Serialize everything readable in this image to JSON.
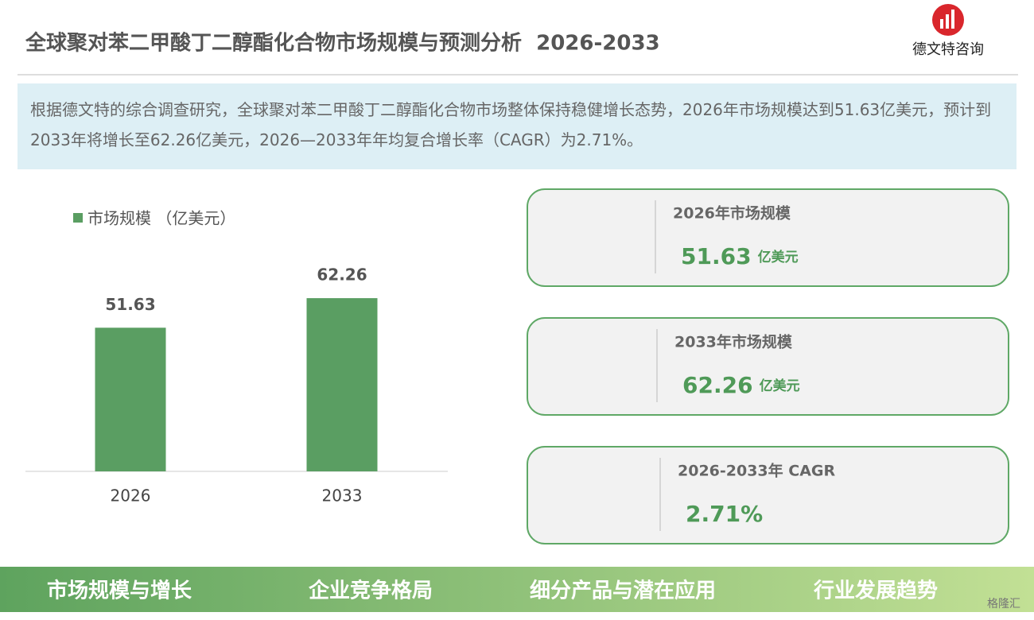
{
  "header": {
    "title": "全球聚对苯二甲酸丁二醇酯化合物市场规模与预测分析  2026-2033",
    "logo_text": "德文特咨询"
  },
  "summary": "根据德文特的综合调查研究，全球聚对苯二甲酸丁二醇酯化合物市场整体保持稳健增长态势，2026年市场规模达到51.63亿美元，预计到2033年将增长至62.26亿美元，2026—2033年年均复合增长率（CAGR）为2.71%。",
  "chart_data": {
    "type": "bar",
    "categories": [
      "2026",
      "2033"
    ],
    "series": [
      {
        "name": "市场规模 （亿美元）",
        "color": "#5a9e62",
        "values": [
          51.63,
          62.26
        ]
      }
    ],
    "ylim": [
      0,
      70
    ]
  },
  "cards": [
    {
      "label": "2026年市场规模",
      "value": "51.63",
      "unit": "亿美元"
    },
    {
      "label": "2033年市场规模",
      "value": "62.26",
      "unit": "亿美元"
    },
    {
      "label": "2026-2033年 CAGR",
      "value": "2.71%"
    }
  ],
  "footer_tabs": [
    "市场规模与增长",
    "企业竞争格局",
    "细分产品与潜在应用",
    "行业发展趋势"
  ],
  "watermark": "格隆汇"
}
